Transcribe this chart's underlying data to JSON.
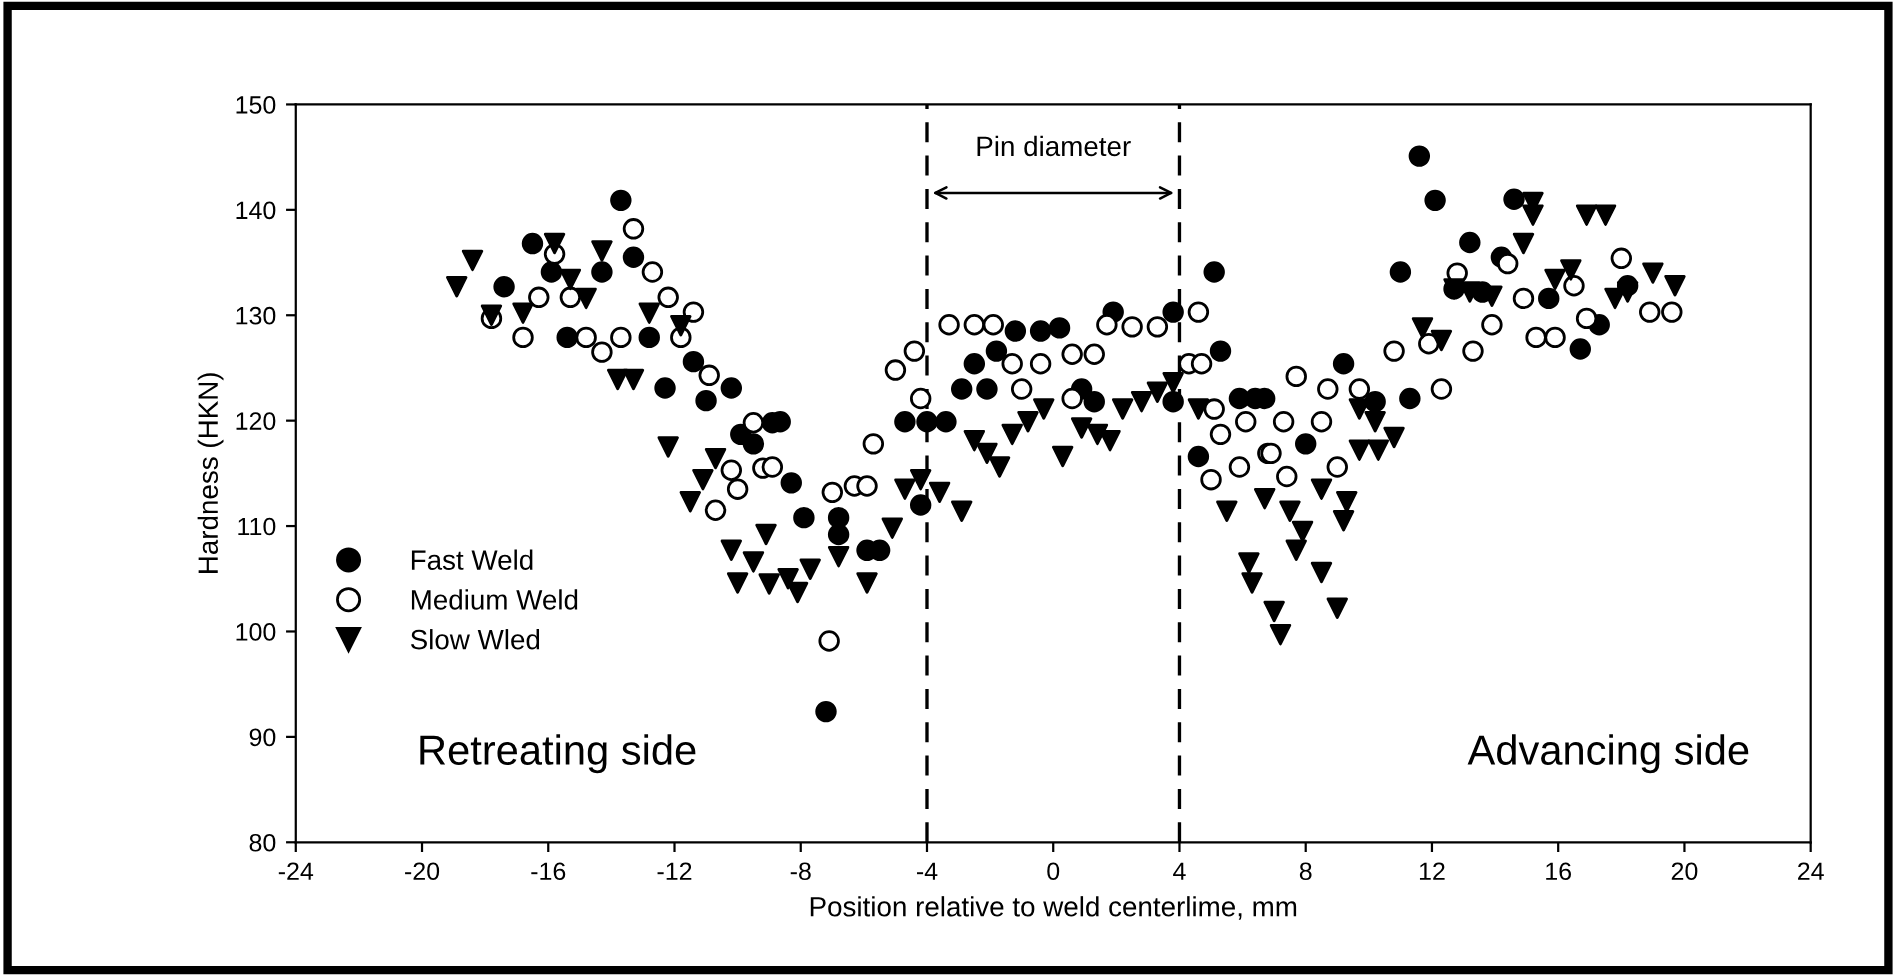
{
  "chart_data": {
    "type": "scatter",
    "xlabel": "Position relative to weld centerlime, mm",
    "ylabel": "Hardness (HKN)",
    "xlim": [
      -24,
      24
    ],
    "ylim": [
      80,
      150
    ],
    "xticks": [
      -24,
      -20,
      -16,
      -12,
      -8,
      -4,
      0,
      4,
      8,
      12,
      16,
      20,
      24
    ],
    "yticks": [
      80,
      90,
      100,
      110,
      120,
      130,
      140,
      150
    ],
    "grid": false,
    "legend": "lower left",
    "ref_lines": [
      {
        "axis": "x",
        "value": -4,
        "line_style": "dashed",
        "color": "#000000"
      },
      {
        "axis": "x",
        "value": 4,
        "line_style": "dashed",
        "color": "#000000"
      }
    ],
    "annotations": [
      "Pin diameter",
      "Retreating side",
      "Advancing side"
    ],
    "series": [
      {
        "name": "Fast Weld",
        "color": "#000000",
        "marker": "circle",
        "x": [
          -13.7,
          -17.4,
          -16.5,
          -15.9,
          -14.3,
          -13.3,
          -15.4,
          -12.8,
          -12.3,
          -11.4,
          -11.0,
          -10.2,
          -8.9,
          -9.9,
          -9.5,
          -8.65,
          -8.3,
          -7.9,
          -6.8,
          -7.2,
          -5.9,
          -5.5,
          -4.7,
          -4.0,
          -3.4,
          -2.5,
          -1.8,
          -1.2,
          -0.4,
          0.2,
          1.9,
          3.8,
          5.1,
          4.6,
          5.3,
          -2.1,
          0.9,
          1.3,
          -2.9,
          3.8,
          5.9,
          6.4,
          -4.2,
          -6.8,
          11.6,
          12.1,
          13.2,
          14.2,
          14.6,
          11.0,
          12.7,
          13.6,
          15.7,
          16.7,
          17.3,
          18.2,
          9.2,
          11.3,
          6.7,
          10.2,
          8.0
        ],
        "values": [
          140.9,
          132.7,
          136.8,
          134.1,
          134.1,
          135.5,
          127.9,
          127.9,
          123.1,
          125.6,
          121.9,
          123.1,
          119.8,
          118.7,
          117.8,
          119.9,
          114.1,
          110.8,
          110.8,
          92.4,
          107.7,
          107.7,
          119.9,
          119.9,
          119.9,
          125.4,
          126.6,
          128.5,
          128.5,
          128.8,
          130.3,
          130.3,
          134.1,
          116.6,
          126.6,
          123.0,
          123.0,
          121.8,
          123.0,
          121.8,
          122.1,
          122.1,
          112.0,
          109.2,
          145.1,
          140.9,
          136.9,
          135.5,
          141.0,
          134.1,
          132.5,
          132.2,
          131.6,
          126.8,
          129.1,
          132.8,
          125.4,
          122.1,
          122.1,
          121.8,
          117.8
        ]
      },
      {
        "name": "Medium Weld",
        "color": "#ffffff",
        "marker": "circle",
        "x": [
          -13.3,
          -15.8,
          -12.7,
          -16.3,
          -15.3,
          -12.2,
          -17.8,
          -11.4,
          -16.8,
          -14.8,
          -13.7,
          -14.3,
          -11.8,
          -10.9,
          -9.5,
          -9.2,
          -10.2,
          -10.0,
          -10.7,
          -8.9,
          -7.0,
          -6.3,
          -5.9,
          -7.1,
          -5.7,
          -5.0,
          -4.4,
          -4.2,
          -3.3,
          -2.5,
          -1.9,
          -1.3,
          -0.4,
          0.6,
          1.3,
          -1.0,
          0.6,
          1.7,
          2.5,
          3.3,
          4.6,
          4.3,
          4.7,
          5.1,
          5.3,
          5.0,
          5.9,
          6.8,
          6.1,
          7.3,
          8.5,
          7.7,
          8.7,
          9.7,
          6.9,
          7.4,
          9.0,
          10.8,
          11.9,
          12.3,
          12.8,
          13.3,
          13.9,
          14.4,
          14.9,
          15.3,
          15.9,
          16.5,
          16.9,
          18.0,
          18.9,
          19.6
        ],
        "values": [
          138.2,
          135.8,
          134.1,
          131.7,
          131.7,
          131.7,
          129.7,
          130.3,
          127.9,
          127.9,
          127.9,
          126.5,
          127.9,
          124.3,
          119.8,
          115.5,
          115.3,
          113.5,
          111.5,
          115.6,
          113.2,
          113.8,
          113.8,
          99.1,
          117.8,
          124.8,
          126.6,
          122.1,
          129.1,
          129.1,
          129.1,
          125.4,
          125.4,
          126.3,
          126.3,
          123.0,
          122.1,
          129.1,
          128.9,
          128.9,
          130.3,
          125.4,
          125.4,
          121.1,
          118.7,
          114.4,
          115.6,
          116.9,
          119.9,
          119.9,
          119.9,
          124.2,
          123.0,
          123.0,
          116.9,
          114.7,
          115.6,
          126.6,
          127.3,
          123.0,
          134.0,
          126.6,
          129.1,
          134.9,
          131.6,
          127.9,
          127.9,
          132.8,
          129.7,
          135.4,
          130.3,
          130.3
        ]
      },
      {
        "name": "Slow Wled",
        "color": "#000000",
        "marker": "triangle",
        "x": [
          -18.9,
          -18.4,
          -17.8,
          -16.8,
          -15.8,
          -15.3,
          -14.8,
          -14.3,
          -13.8,
          -13.3,
          -12.8,
          -11.8,
          -12.2,
          -11.5,
          -11.1,
          -10.7,
          -10.2,
          -10.0,
          -9.5,
          -9.0,
          -9.1,
          -8.4,
          -8.1,
          -7.7,
          -6.8,
          -5.9,
          -5.1,
          -4.7,
          -4.2,
          -3.6,
          -2.9,
          -2.5,
          -2.1,
          -1.7,
          -1.3,
          -0.8,
          -0.3,
          0.3,
          0.9,
          1.4,
          1.8,
          2.2,
          2.8,
          3.3,
          3.8,
          4.6,
          5.5,
          6.2,
          6.3,
          7.0,
          7.2,
          6.7,
          7.5,
          7.9,
          7.7,
          8.5,
          9.3,
          9.2,
          8.5,
          9.0,
          9.7,
          10.2,
          10.8,
          9.7,
          10.3,
          11.7,
          12.3,
          12.7,
          13.2,
          13.9,
          14.9,
          15.2,
          15.2,
          16.4,
          15.9,
          16.9,
          17.5,
          17.8,
          18.2,
          19.0,
          19.7
        ],
        "values": [
          132.7,
          135.2,
          130.0,
          130.2,
          136.8,
          133.4,
          131.6,
          136.1,
          123.9,
          123.9,
          130.2,
          129.0,
          117.5,
          112.3,
          114.4,
          116.4,
          107.7,
          104.6,
          106.6,
          104.5,
          109.2,
          105.0,
          103.7,
          105.9,
          107.1,
          104.6,
          109.8,
          113.5,
          114.4,
          113.2,
          111.4,
          118.1,
          116.9,
          115.6,
          118.7,
          119.9,
          121.1,
          116.6,
          119.3,
          118.7,
          118.1,
          121.1,
          121.8,
          122.7,
          123.6,
          121.1,
          111.4,
          106.5,
          104.6,
          101.9,
          99.7,
          112.6,
          111.4,
          109.5,
          107.7,
          113.5,
          112.3,
          110.5,
          105.6,
          102.2,
          121.1,
          119.9,
          118.4,
          117.2,
          117.2,
          128.8,
          127.6,
          132.5,
          132.2,
          131.8,
          136.8,
          140.7,
          139.5,
          134.3,
          133.4,
          139.5,
          139.5,
          131.6,
          132.2,
          134.0,
          132.8
        ]
      }
    ]
  }
}
